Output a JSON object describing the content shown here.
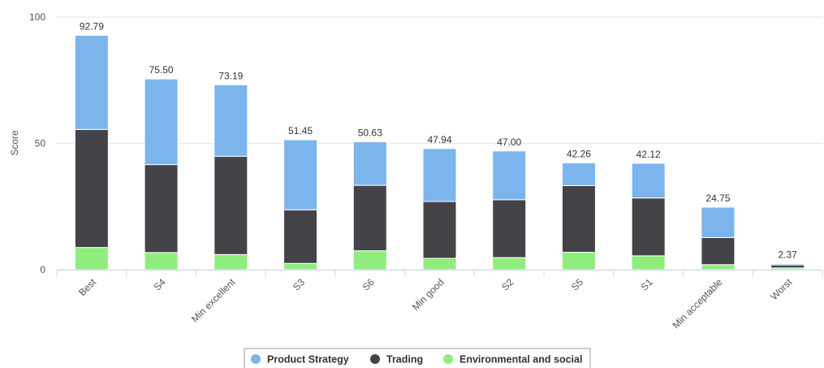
{
  "chart_data": {
    "type": "bar",
    "stacked": true,
    "categories": [
      "Best",
      "S4",
      "Min excellent",
      "S3",
      "S6",
      "Min good",
      "S2",
      "S5",
      "S1",
      "Min acceptable",
      "Worst"
    ],
    "series": [
      {
        "name": "Environmental and social",
        "color": "#90ed7d",
        "values": [
          8.8,
          6.8,
          6.0,
          2.5,
          7.5,
          4.5,
          4.8,
          6.9,
          5.5,
          2.0,
          0.7
        ]
      },
      {
        "name": "Trading",
        "color": "#434348",
        "values": [
          46.7,
          34.8,
          38.9,
          21.2,
          25.9,
          22.5,
          22.9,
          26.4,
          22.9,
          10.7,
          1.2
        ]
      },
      {
        "name": "Product Strategy",
        "color": "#7cb5ec",
        "values": [
          37.29,
          33.9,
          28.29,
          27.75,
          17.23,
          20.94,
          19.3,
          8.96,
          13.72,
          12.05,
          0.47
        ]
      }
    ],
    "totals": [
      "92.79",
      "75.50",
      "73.19",
      "51.45",
      "50.63",
      "47.94",
      "47.00",
      "42.26",
      "42.12",
      "24.75",
      "2.37"
    ],
    "ylabel": "Score",
    "xlabel": "",
    "ylim": [
      0,
      100
    ],
    "yticks": [
      "0",
      "50",
      "100"
    ],
    "legend": {
      "placement": "bottom-center",
      "items": [
        "Product Strategy",
        "Trading",
        "Environmental and social"
      ]
    },
    "grid": true
  }
}
